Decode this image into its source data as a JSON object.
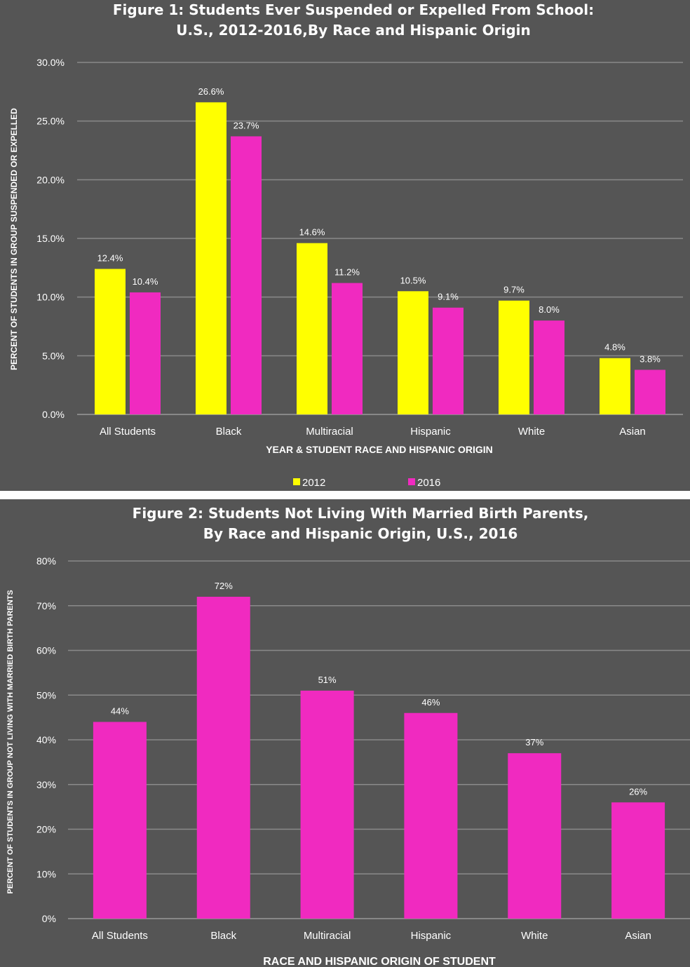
{
  "chart_data": [
    {
      "type": "bar",
      "title_line1": "Figure 1: Students Ever Suspended or Expelled From School:",
      "title_line2": "U.S., 2012-2016,By Race and Hispanic Origin",
      "xlabel": "YEAR & STUDENT RACE AND HISPANIC ORIGIN",
      "ylabel": "PERCENT OF STUDENTS IN GROUP SUSPENDED OR EXPELLED",
      "ylim": [
        0,
        30
      ],
      "yticks": [
        "0.0%",
        "5.0%",
        "10.0%",
        "15.0%",
        "20.0%",
        "25.0%",
        "30.0%"
      ],
      "categories": [
        "All Students",
        "Black",
        "Multiracial",
        "Hispanic",
        "White",
        "Asian"
      ],
      "series": [
        {
          "name": "2012",
          "color": "#ffff00",
          "values": [
            12.4,
            26.6,
            14.6,
            10.5,
            9.7,
            4.8
          ],
          "labels": [
            "12.4%",
            "26.6%",
            "14.6%",
            "10.5%",
            "9.7%",
            "4.8%"
          ]
        },
        {
          "name": "2016",
          "color": "#f02ac0",
          "values": [
            10.4,
            23.7,
            11.2,
            9.1,
            8.0,
            3.8
          ],
          "labels": [
            "10.4%",
            "23.7%",
            "11.2%",
            "9.1%",
            "8.0%",
            "3.8%"
          ]
        }
      ],
      "grid": true,
      "legend": "bottom"
    },
    {
      "type": "bar",
      "title_line1": "Figure 2: Students Not Living With Married Birth Parents,",
      "title_line2": "By Race and Hispanic Origin, U.S., 2016",
      "xlabel": "RACE AND HISPANIC ORIGIN OF STUDENT",
      "ylabel": "PERCENT OF STUDENTS IN GROUP NOT LIVING WITH MARRIED BIRTH PARENTS",
      "ylim": [
        0,
        80
      ],
      "yticks": [
        "0%",
        "10%",
        "20%",
        "30%",
        "40%",
        "50%",
        "60%",
        "70%",
        "80%"
      ],
      "categories": [
        "All Students",
        "Black",
        "Multiracial",
        "Hispanic",
        "White",
        "Asian"
      ],
      "series": [
        {
          "color": "#f02ac0",
          "values": [
            44,
            72,
            51,
            46,
            37,
            26
          ],
          "labels": [
            "44%",
            "72%",
            "51%",
            "46%",
            "37%",
            "26%"
          ]
        }
      ],
      "grid": true,
      "legend": "none"
    }
  ]
}
